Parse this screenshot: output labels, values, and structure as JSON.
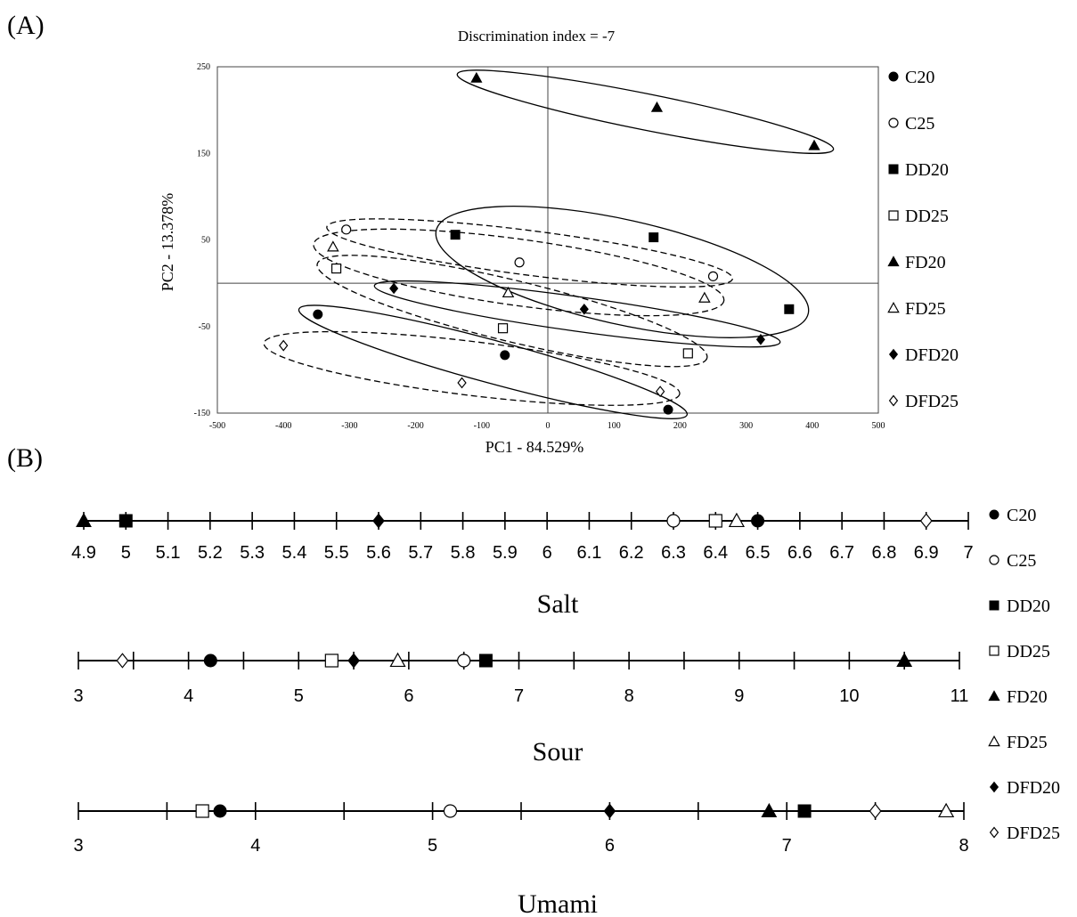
{
  "panel_labels": {
    "a": "(A)",
    "b": "(B)"
  },
  "groups": [
    {
      "name": "C20",
      "shape": "circle",
      "filled": true
    },
    {
      "name": "C25",
      "shape": "circle",
      "filled": false
    },
    {
      "name": "DD20",
      "shape": "square",
      "filled": true
    },
    {
      "name": "DD25",
      "shape": "square",
      "filled": false
    },
    {
      "name": "FD20",
      "shape": "triangle",
      "filled": true
    },
    {
      "name": "FD25",
      "shape": "triangle",
      "filled": false
    },
    {
      "name": "DFD20",
      "shape": "diamond",
      "filled": true
    },
    {
      "name": "DFD25",
      "shape": "diamond",
      "filled": false
    }
  ],
  "chart_data": [
    {
      "type": "scatter",
      "title": "Discrimination index = -7",
      "xlabel": "PC1 - 84.529%",
      "ylabel": "PC2 - 13.378%",
      "xlim": [
        -500,
        500
      ],
      "ylim": [
        -150,
        250
      ],
      "xticks": [
        -500,
        -400,
        -300,
        -200,
        -100,
        0,
        100,
        200,
        300,
        400,
        500
      ],
      "yticks": [
        -150,
        -50,
        50,
        150,
        250
      ],
      "legend_position": "right",
      "series": [
        {
          "name": "C20",
          "points": [
            [
              -348,
              -36
            ],
            [
              -65,
              -83
            ],
            [
              182,
              -146
            ]
          ],
          "ellipse": "solid"
        },
        {
          "name": "C25",
          "points": [
            [
              -305,
              62
            ],
            [
              -43,
              24
            ],
            [
              250,
              8
            ]
          ],
          "ellipse": "dashed"
        },
        {
          "name": "DD20",
          "points": [
            [
              -140,
              56
            ],
            [
              160,
              53
            ],
            [
              365,
              -30
            ]
          ],
          "ellipse": "solid"
        },
        {
          "name": "DD25",
          "points": [
            [
              -320,
              17
            ],
            [
              -68,
              -52
            ],
            [
              212,
              -81
            ]
          ],
          "ellipse": "dashed"
        },
        {
          "name": "FD20",
          "points": [
            [
              -108,
              237
            ],
            [
              165,
              203
            ],
            [
              403,
              159
            ]
          ],
          "ellipse": "solid"
        },
        {
          "name": "FD25",
          "points": [
            [
              -325,
              42
            ],
            [
              -60,
              -11
            ],
            [
              237,
              -17
            ]
          ],
          "ellipse": "dashed"
        },
        {
          "name": "DFD20",
          "points": [
            [
              -233,
              -6
            ],
            [
              55,
              -30
            ],
            [
              322,
              -65
            ]
          ],
          "ellipse": "solid"
        },
        {
          "name": "DFD25",
          "points": [
            [
              -400,
              -72
            ],
            [
              -130,
              -115
            ],
            [
              170,
              -125
            ]
          ],
          "ellipse": "dashed"
        }
      ]
    },
    {
      "type": "scatter",
      "title": "Salt",
      "xlim": [
        4.9,
        7
      ],
      "xticks": [
        "4.9",
        "5",
        "5.1",
        "5.2",
        "5.3",
        "5.4",
        "5.5",
        "5.6",
        "5.7",
        "5.8",
        "5.9",
        "6",
        "6.1",
        "6.2",
        "6.3",
        "6.4",
        "6.5",
        "6.6",
        "6.7",
        "6.8",
        "6.9",
        "7"
      ],
      "minor_step": 0.1,
      "values": {
        "C20": 6.5,
        "C25": 6.3,
        "DD20": 5.0,
        "DD25": 6.4,
        "FD20": 4.9,
        "FD25": 6.45,
        "DFD20": 5.6,
        "DFD25": 6.9
      }
    },
    {
      "type": "scatter",
      "title": "Sour",
      "xlim": [
        3,
        11
      ],
      "xticks": [
        "3",
        "4",
        "5",
        "6",
        "7",
        "8",
        "9",
        "10",
        "11"
      ],
      "minor_step": 0.5,
      "values": {
        "C20": 4.2,
        "C25": 6.5,
        "DD20": 6.7,
        "DD25": 5.3,
        "FD20": 10.5,
        "FD25": 5.9,
        "DFD20": 5.5,
        "DFD25": 3.4
      }
    },
    {
      "type": "scatter",
      "title": "Umami",
      "xlim": [
        3,
        8
      ],
      "xticks": [
        "3",
        "4",
        "5",
        "6",
        "7",
        "8"
      ],
      "minor_step": 0.5,
      "values": {
        "C20": 3.8,
        "C25": 5.1,
        "DD20": 7.1,
        "DD25": 3.7,
        "FD20": 6.9,
        "FD25": 7.9,
        "DFD20": 6.0,
        "DFD25": 7.5
      }
    }
  ]
}
